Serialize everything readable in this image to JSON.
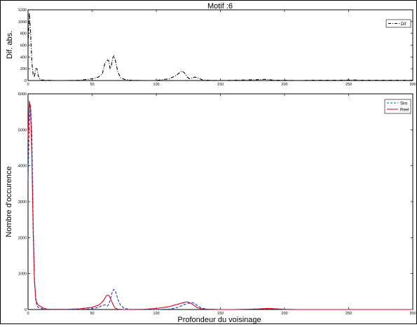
{
  "chart_data": [
    {
      "type": "line",
      "title": "Motif :6",
      "xlabel": "",
      "ylabel": "Dif. abs.",
      "xlim": [
        0,
        300
      ],
      "ylim": [
        0,
        1200
      ],
      "xticks": [
        0,
        50,
        100,
        150,
        200,
        250,
        300
      ],
      "yticks": [
        0,
        200,
        400,
        600,
        800,
        1000,
        1200
      ],
      "legend_position": "top-right",
      "series": [
        {
          "name": "Dif",
          "color": "#000000",
          "dash": "dash-dot",
          "x": [
            0,
            1,
            2,
            3,
            4,
            5,
            6,
            7,
            8,
            9,
            10,
            15,
            20,
            30,
            40,
            50,
            55,
            58,
            60,
            62,
            63,
            64,
            65,
            66,
            67,
            68,
            70,
            72,
            75,
            80,
            90,
            100,
            110,
            115,
            118,
            120,
            122,
            124,
            126,
            128,
            130,
            133,
            136,
            140,
            150,
            160,
            170,
            180,
            185,
            188,
            190,
            195,
            200,
            210,
            220,
            230,
            240,
            250,
            255,
            260,
            270,
            280,
            290,
            300
          ],
          "values": [
            600,
            1150,
            800,
            300,
            100,
            60,
            200,
            200,
            80,
            30,
            10,
            5,
            0,
            0,
            5,
            30,
            60,
            120,
            300,
            350,
            330,
            200,
            250,
            380,
            420,
            350,
            150,
            50,
            20,
            5,
            0,
            0,
            30,
            80,
            130,
            160,
            130,
            60,
            30,
            40,
            60,
            40,
            10,
            5,
            0,
            5,
            10,
            15,
            20,
            15,
            10,
            5,
            5,
            0,
            5,
            5,
            5,
            8,
            10,
            5,
            5,
            5,
            5,
            5
          ]
        }
      ]
    },
    {
      "type": "line",
      "title": "",
      "xlabel": "Profondeur du voisinage",
      "ylabel": "Nombre d'occurence",
      "xlim": [
        0,
        300
      ],
      "ylim": [
        0,
        6000
      ],
      "xticks": [
        0,
        50,
        100,
        150,
        200,
        250,
        300
      ],
      "yticks": [
        0,
        1000,
        2000,
        3000,
        4000,
        5000,
        6000
      ],
      "legend_position": "top-right",
      "series": [
        {
          "name": "Sim",
          "color": "#1f3fc8",
          "dash": "dashed",
          "x": [
            0,
            1,
            2,
            3,
            4,
            5,
            6,
            7,
            8,
            10,
            12,
            15,
            20,
            30,
            40,
            50,
            55,
            58,
            60,
            62,
            63,
            64,
            65,
            66,
            67,
            68,
            69,
            70,
            72,
            75,
            80,
            90,
            100,
            110,
            115,
            118,
            120,
            122,
            124,
            126,
            128,
            130,
            132,
            135,
            140,
            150,
            160,
            170,
            180,
            185,
            190,
            195,
            200,
            250,
            300
          ],
          "values": [
            3600,
            5200,
            5700,
            4800,
            2500,
            900,
            250,
            100,
            60,
            30,
            15,
            5,
            0,
            0,
            5,
            20,
            60,
            110,
            130,
            100,
            150,
            250,
            400,
            520,
            560,
            520,
            420,
            280,
            120,
            30,
            5,
            0,
            0,
            10,
            40,
            80,
            110,
            140,
            160,
            180,
            190,
            170,
            110,
            40,
            10,
            0,
            0,
            5,
            15,
            20,
            15,
            5,
            0,
            0,
            0
          ]
        },
        {
          "name": "Reel",
          "color": "#e0001b",
          "dash": "solid",
          "x": [
            0,
            1,
            2,
            3,
            4,
            5,
            6,
            7,
            8,
            10,
            12,
            15,
            20,
            30,
            40,
            50,
            55,
            57,
            59,
            60,
            61,
            62,
            63,
            64,
            65,
            66,
            67,
            68,
            70,
            72,
            75,
            80,
            90,
            100,
            110,
            115,
            118,
            120,
            122,
            124,
            126,
            128,
            130,
            132,
            135,
            140,
            150,
            160,
            170,
            180,
            185,
            190,
            195,
            200,
            210,
            250,
            300
          ],
          "values": [
            4800,
            5800,
            5500,
            4200,
            2200,
            800,
            300,
            180,
            120,
            80,
            40,
            10,
            5,
            5,
            20,
            60,
            120,
            180,
            260,
            320,
            380,
            400,
            390,
            330,
            250,
            160,
            90,
            40,
            10,
            5,
            0,
            0,
            5,
            30,
            80,
            130,
            160,
            180,
            200,
            210,
            190,
            150,
            100,
            50,
            20,
            5,
            0,
            0,
            5,
            15,
            30,
            25,
            15,
            5,
            0,
            0,
            0
          ]
        }
      ]
    }
  ]
}
